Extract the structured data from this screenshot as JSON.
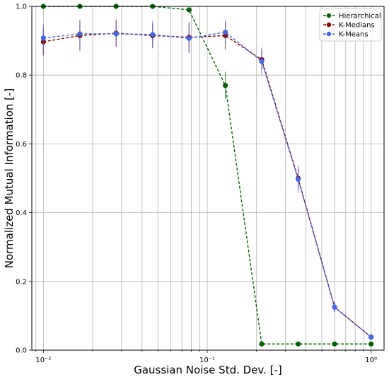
{
  "chart_data": {
    "type": "line",
    "title": "",
    "xlabel": "Gaussian Noise Std. Dev. [-]",
    "ylabel": "Normalized Mutual Information [-]",
    "xscale": "log",
    "xlim": [
      0.0085,
      1.2
    ],
    "ylim": [
      0.0,
      1.0
    ],
    "grid": true,
    "legend_position": "top-right",
    "x_ticks": [
      {
        "value": 0.01,
        "label": "10⁻²"
      },
      {
        "value": 0.1,
        "label": "10⁻¹"
      },
      {
        "value": 1.0,
        "label": "10⁰"
      }
    ],
    "y_ticks": [
      {
        "value": 0.0,
        "label": "0.0"
      },
      {
        "value": 0.2,
        "label": "0.2"
      },
      {
        "value": 0.4,
        "label": "0.4"
      },
      {
        "value": 0.6,
        "label": "0.6"
      },
      {
        "value": 0.8,
        "label": "0.8"
      },
      {
        "value": 1.0,
        "label": "1.0"
      }
    ],
    "x": [
      0.01,
      0.0167,
      0.0278,
      0.0464,
      0.0774,
      0.129,
      0.215,
      0.359,
      0.599,
      1.0
    ],
    "series": [
      {
        "name": "Hierarchical",
        "color": "#006400",
        "values": [
          1.0,
          1.0,
          1.0,
          1.0,
          0.99,
          0.77,
          0.018,
          0.018,
          0.018,
          0.018
        ],
        "errors": [
          0.0,
          0.0,
          0.0,
          0.0,
          0.0,
          0.04,
          0.0,
          0.0,
          0.0,
          0.0
        ]
      },
      {
        "name": "K-Medians",
        "color": "#8b0000",
        "values": [
          0.897,
          0.915,
          0.922,
          0.915,
          0.91,
          0.915,
          0.845,
          0.5,
          0.125,
          0.038
        ],
        "errors": [
          0.04,
          0.045,
          0.04,
          0.035,
          0.045,
          0.04,
          0.03,
          0.03,
          0.015,
          0.008
        ]
      },
      {
        "name": "K-Means",
        "color": "#4169e1",
        "values": [
          0.908,
          0.92,
          0.92,
          0.918,
          0.907,
          0.925,
          0.84,
          0.497,
          0.125,
          0.038
        ],
        "errors": [
          0.04,
          0.04,
          0.035,
          0.04,
          0.04,
          0.035,
          0.04,
          0.04,
          0.015,
          0.008
        ]
      }
    ]
  }
}
